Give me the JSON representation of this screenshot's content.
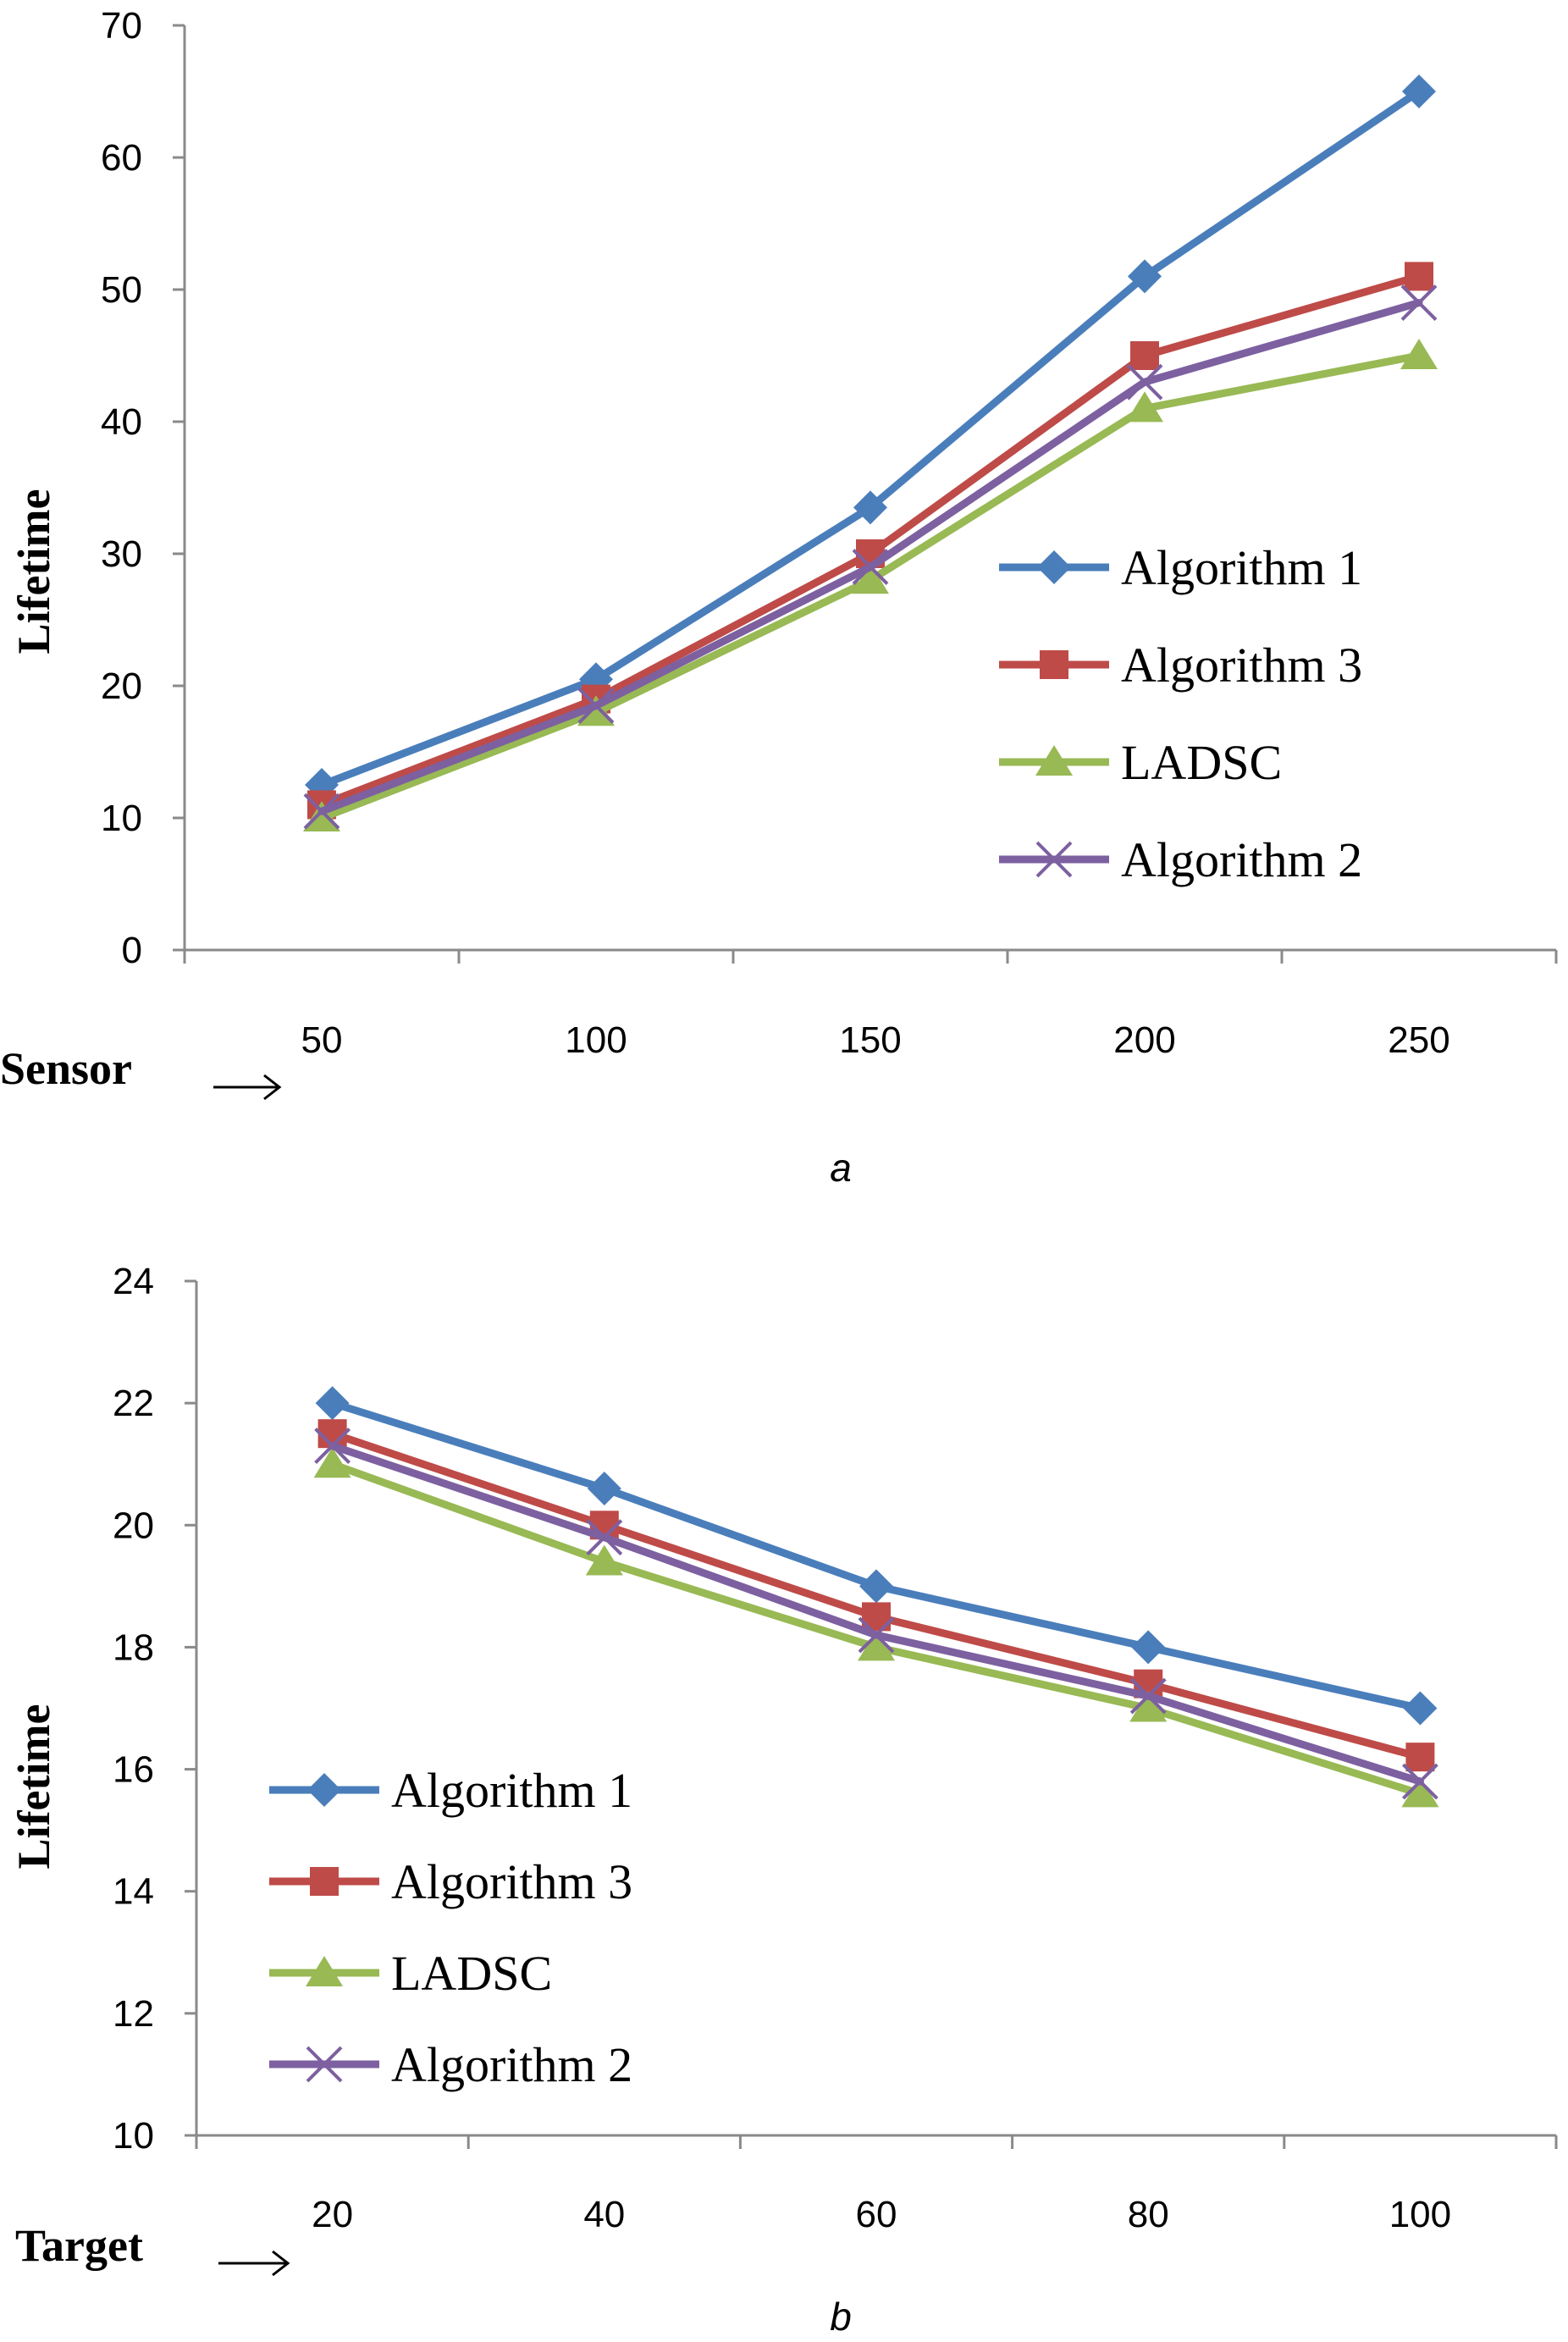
{
  "chart_data": [
    {
      "type": "line",
      "panel_label": "a",
      "xlabel": "Sensor",
      "ylabel": "Lifetime",
      "categories": [
        "50",
        "100",
        "150",
        "200",
        "250"
      ],
      "ylim": [
        0,
        70
      ],
      "yticks": [
        "0",
        "10",
        "20",
        "30",
        "40",
        "50",
        "60",
        "70"
      ],
      "legend_position": "right",
      "series": [
        {
          "name": "Algorithm 1",
          "color": "#4a7ebb",
          "marker": "diamond",
          "values": [
            12.5,
            20.5,
            33.5,
            51,
            65
          ]
        },
        {
          "name": "Algorithm 3",
          "color": "#be4b48",
          "marker": "square",
          "values": [
            11,
            19,
            30,
            45,
            51
          ]
        },
        {
          "name": "LADSC",
          "color": "#98b954",
          "marker": "triangle",
          "values": [
            10,
            18,
            28,
            41,
            45
          ]
        },
        {
          "name": "Algorithm 2",
          "color": "#7d60a0",
          "marker": "x",
          "values": [
            10.5,
            18.5,
            29,
            43,
            49
          ]
        }
      ]
    },
    {
      "type": "line",
      "panel_label": "b",
      "xlabel": "Target",
      "ylabel": "Lifetime",
      "categories": [
        "20",
        "40",
        "60",
        "80",
        "100"
      ],
      "ylim": [
        10,
        24
      ],
      "yticks": [
        "10",
        "12",
        "14",
        "16",
        "18",
        "20",
        "22",
        "24"
      ],
      "legend_position": "lower-left",
      "series": [
        {
          "name": "Algorithm 1",
          "color": "#4a7ebb",
          "marker": "diamond",
          "values": [
            22,
            20.6,
            19,
            18,
            17
          ]
        },
        {
          "name": "Algorithm 3",
          "color": "#be4b48",
          "marker": "square",
          "values": [
            21.5,
            20,
            18.5,
            17.4,
            16.2
          ]
        },
        {
          "name": "LADSC",
          "color": "#98b954",
          "marker": "triangle",
          "values": [
            21,
            19.4,
            18,
            17,
            15.6
          ]
        },
        {
          "name": "Algorithm 2",
          "color": "#7d60a0",
          "marker": "x",
          "values": [
            21.3,
            19.8,
            18.2,
            17.2,
            15.8
          ]
        }
      ]
    }
  ]
}
